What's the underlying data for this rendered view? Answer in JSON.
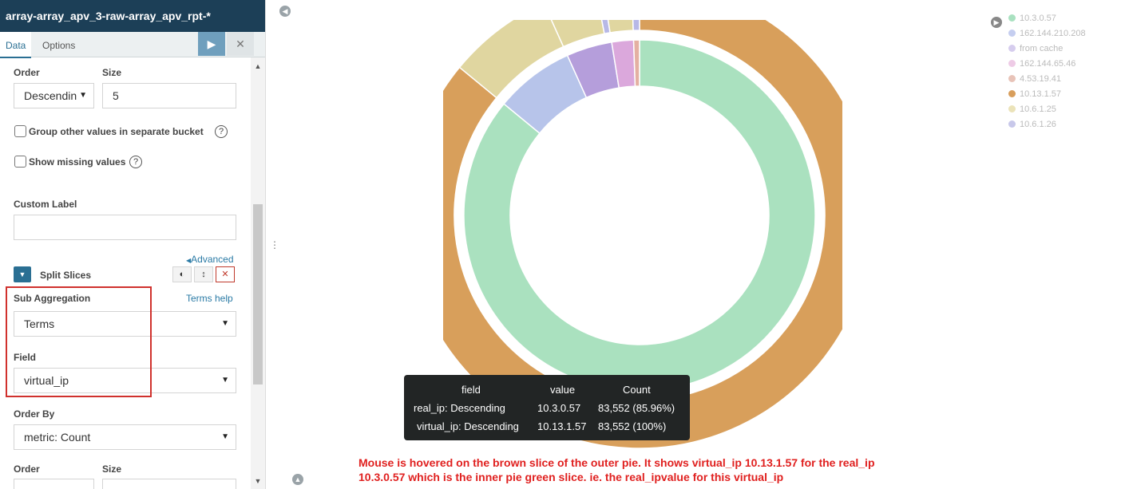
{
  "sidebar": {
    "title": "array-array_apv_3-raw-array_apv_rpt-*",
    "tabs": {
      "data": "Data",
      "options": "Options"
    },
    "apply_icon": "play-icon",
    "discard_icon": "close-icon",
    "order_label": "Order",
    "order_value": "Descendin",
    "size_label": "Size",
    "size_value": "5",
    "group_other_label": "Group other values in separate bucket",
    "show_missing_label": "Show missing values",
    "custom_label_label": "Custom Label",
    "custom_label_value": "",
    "advanced_link": "Advanced",
    "split_slices_label": "Split Slices",
    "sub_aggregation_label": "Sub Aggregation",
    "terms_help_link": "Terms help",
    "sub_aggregation_value": "Terms",
    "field_label": "Field",
    "field_value": "virtual_ip",
    "order_by_label": "Order By",
    "order_by_value": "metric: Count",
    "order2_label": "Order",
    "size2_label": "Size"
  },
  "legend": {
    "items": [
      {
        "label": "10.3.0.57",
        "color": "#a9e1c0"
      },
      {
        "label": "162.144.210.208",
        "color": "#c5cef0"
      },
      {
        "label": "from cache",
        "color": "#d6cdee"
      },
      {
        "label": "162.144.65.46",
        "color": "#eecbe6"
      },
      {
        "label": "4.53.19.41",
        "color": "#e8c3b8"
      },
      {
        "label": "10.13.1.57",
        "color": "#d89e5c"
      },
      {
        "label": "10.6.1.25",
        "color": "#ebe3b9"
      },
      {
        "label": "10.6.1.26",
        "color": "#c8c8ea"
      }
    ]
  },
  "chart_data": {
    "type": "pie",
    "donut": true,
    "inner_ring": [
      {
        "label": "10.3.0.57",
        "value": 85.96,
        "color": "#aae1bf"
      },
      {
        "label": "162.144.210.208",
        "value": 7.3,
        "color": "#b7c4ea"
      },
      {
        "label": "from cache",
        "value": 4.2,
        "color": "#b59edb"
      },
      {
        "label": "162.144.65.46",
        "value": 2.0,
        "color": "#dba8dc"
      },
      {
        "label": "4.53.19.41",
        "value": 0.54,
        "color": "#e4b0a2"
      }
    ],
    "outer_ring": [
      {
        "label": "10.13.1.57",
        "value": 85.96,
        "color": "#d89f5b"
      },
      {
        "label": "10.6.1.25",
        "value": 7.3,
        "color": "#e0d6a0"
      },
      {
        "label": "10.6.1.25",
        "value": 3.7,
        "color": "#e0d6a0"
      },
      {
        "label": "10.6.1.26",
        "value": 0.5,
        "color": "#b7b8e6"
      },
      {
        "label": "10.6.1.25",
        "value": 2.0,
        "color": "#e0d6a0"
      },
      {
        "label": "10.6.1.26",
        "value": 0.54,
        "color": "#b7b8e6"
      }
    ]
  },
  "tooltip": {
    "headers": [
      "field",
      "value",
      "Count"
    ],
    "rows": [
      [
        "real_ip: Descending",
        "10.3.0.57",
        "83,552 (85.96%)"
      ],
      [
        "virtual_ip: Descending",
        "10.13.1.57",
        "83,552 (100%)"
      ]
    ]
  },
  "note": {
    "line1": "Mouse is hovered on the brown slice of the outer pie. It shows virtual_ip 10.13.1.57 for the real_ip",
    "line2": "10.3.0.57 which is the inner pie green slice. ie. the real_ipvalue for this virtual_ip"
  }
}
